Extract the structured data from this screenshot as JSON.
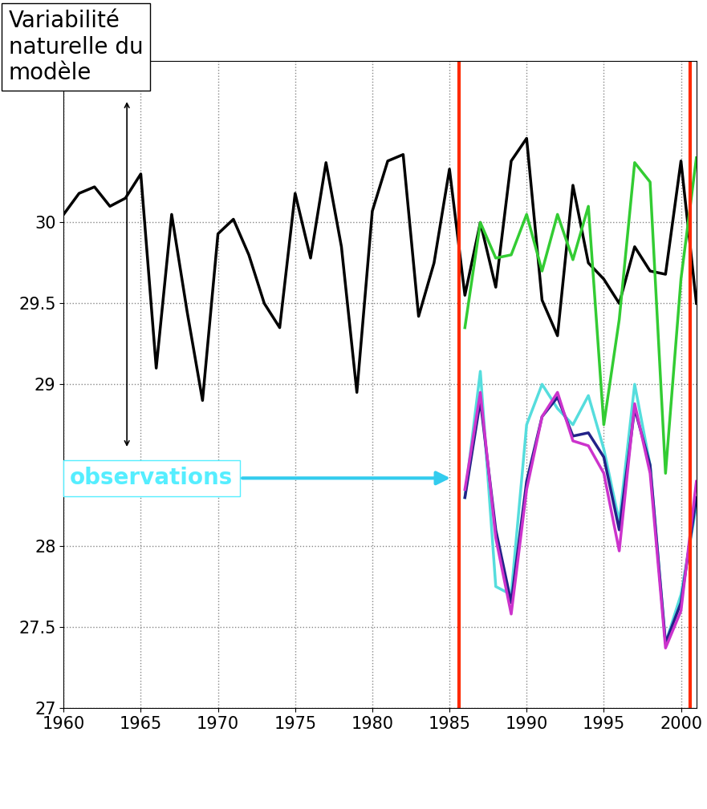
{
  "chart_data": {
    "type": "line",
    "annotations": [
      "Variabilité naturelle du modèle",
      "observations"
    ],
    "xlim": [
      1960,
      2001
    ],
    "xticks": [
      1960,
      1965,
      1970,
      1975,
      1980,
      1985,
      1990,
      1995,
      2000
    ],
    "ylim": [
      27,
      31
    ],
    "yticks": [
      27,
      27.5,
      28,
      29,
      29.5,
      30
    ],
    "grid": true,
    "vertical_lines": [
      1985.6,
      2000.6
    ],
    "series": [
      {
        "color": "#000000",
        "x": [
          1960,
          1961,
          1962,
          1963,
          1964,
          1965,
          1966,
          1967,
          1968,
          1969,
          1970,
          1971,
          1972,
          1973,
          1974,
          1975,
          1976,
          1977,
          1978,
          1979,
          1980,
          1981,
          1982,
          1983,
          1984,
          1985,
          1986,
          1987,
          1988,
          1989,
          1990,
          1991,
          1992,
          1993,
          1994,
          1995,
          1996,
          1997,
          1998,
          1999,
          2000,
          2001
        ],
        "values": [
          30.05,
          30.18,
          30.22,
          30.1,
          30.15,
          30.3,
          29.1,
          30.05,
          29.45,
          28.9,
          29.93,
          30.02,
          29.8,
          29.5,
          29.35,
          30.18,
          29.78,
          30.37,
          29.85,
          28.95,
          30.07,
          30.38,
          30.42,
          29.42,
          29.75,
          30.33,
          29.55,
          30.0,
          29.6,
          30.38,
          30.52,
          29.52,
          29.3,
          30.23,
          29.75,
          29.65,
          29.5,
          29.85,
          29.7,
          29.68,
          30.38,
          29.5
        ]
      },
      {
        "color": "#33cc33",
        "x": [
          1986,
          1987,
          1988,
          1989,
          1990,
          1991,
          1992,
          1993,
          1994,
          1995,
          1996,
          1997,
          1998,
          1999,
          2000,
          2001
        ],
        "values": [
          29.35,
          30.0,
          29.78,
          29.8,
          30.05,
          29.7,
          30.05,
          29.77,
          30.1,
          28.75,
          29.4,
          30.37,
          30.25,
          28.45,
          29.65,
          30.4
        ]
      },
      {
        "color": "#55dddd",
        "x": [
          1986,
          1987,
          1988,
          1989,
          1990,
          1991,
          1992,
          1993,
          1994,
          1995,
          1996,
          1997,
          1998,
          1999,
          2000,
          2001
        ],
        "values": [
          28.3,
          29.08,
          27.75,
          27.7,
          28.75,
          29.0,
          28.85,
          28.75,
          28.93,
          28.6,
          28.15,
          29.0,
          28.5,
          27.4,
          27.7,
          28.25
        ]
      },
      {
        "color": "#222288",
        "x": [
          1986,
          1987,
          1988,
          1989,
          1990,
          1991,
          1992,
          1993,
          1994,
          1995,
          1996,
          1997,
          1998,
          1999,
          2000,
          2001
        ],
        "values": [
          28.3,
          28.9,
          28.1,
          27.65,
          28.4,
          28.8,
          28.92,
          28.68,
          28.7,
          28.55,
          28.1,
          28.85,
          28.5,
          27.4,
          27.65,
          28.3
        ]
      },
      {
        "color": "#cc33cc",
        "x": [
          1986,
          1987,
          1988,
          1989,
          1990,
          1991,
          1992,
          1993,
          1994,
          1995,
          1996,
          1997,
          1998,
          1999,
          2000,
          2001
        ],
        "values": [
          28.35,
          28.95,
          28.05,
          27.58,
          28.35,
          28.8,
          28.95,
          28.65,
          28.62,
          28.45,
          27.97,
          28.88,
          28.45,
          27.37,
          27.6,
          28.4
        ]
      }
    ]
  }
}
